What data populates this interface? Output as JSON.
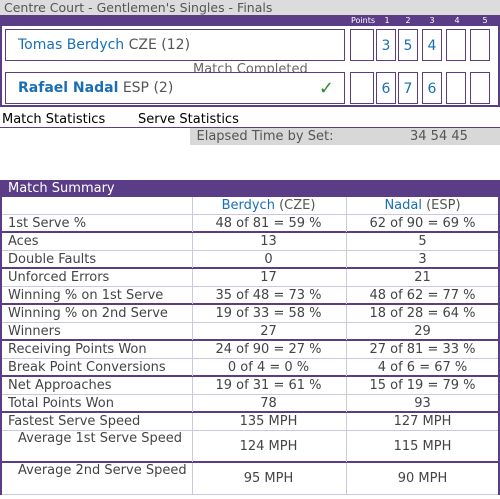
{
  "title": "Centre Court - Gentlemen's Singles - Finals",
  "header": {
    "points": "Points",
    "sets": [
      "1",
      "2",
      "3",
      "4",
      "5"
    ]
  },
  "players": [
    {
      "name": "Tomas Berdych",
      "extra": "CZE (12)",
      "bold": false,
      "winner": false,
      "sets": [
        "3",
        "5",
        "4",
        "",
        ""
      ]
    },
    {
      "name": "Rafael Nadal",
      "extra": "ESP (2)",
      "bold": true,
      "winner": true,
      "sets": [
        "6",
        "7",
        "6",
        "",
        ""
      ]
    }
  ],
  "status": "Match Completed",
  "links": {
    "match_stats": "Match Statistics",
    "serve_stats": "Serve Statistics"
  },
  "elapsed": {
    "label": "Elapsed Time by Set:",
    "value": "34 54 45"
  },
  "summary": {
    "title": "Match Summary",
    "col1": {
      "name": "Berdych",
      "country": "(CZE)"
    },
    "col2": {
      "name": "Nadal",
      "country": "(ESP)"
    },
    "rows": [
      {
        "label": "1st Serve %",
        "v1": "48 of 81 = 59 %",
        "v2": "62 of 90 = 69 %"
      },
      {
        "label": "Aces",
        "v1": "13",
        "v2": "5"
      },
      {
        "label": "Double Faults",
        "v1": "0",
        "v2": "3"
      },
      {
        "label": "Unforced Errors",
        "v1": "17",
        "v2": "21"
      },
      {
        "label": "Winning % on 1st Serve",
        "v1": "35 of 48 = 73 %",
        "v2": "48 of 62 = 77 %"
      },
      {
        "label": "Winning % on 2nd Serve",
        "v1": "19 of 33 = 58 %",
        "v2": "18 of 28 = 64 %"
      },
      {
        "label": "Winners",
        "v1": "27",
        "v2": "29"
      },
      {
        "label": "Receiving Points Won",
        "v1": "24 of 90 = 27 %",
        "v2": "27 of 81 = 33 %"
      },
      {
        "label": "Break Point Conversions",
        "v1": "0 of 4 = 0 %",
        "v2": "4 of 6 = 67 %"
      },
      {
        "label": "Net Approaches",
        "v1": "19 of 31 = 61 %",
        "v2": "15 of 19 = 79 %"
      },
      {
        "label": "Total Points Won",
        "v1": "78",
        "v2": "93"
      },
      {
        "label": "Fastest Serve Speed",
        "v1": "135 MPH",
        "v2": "127 MPH"
      },
      {
        "label": "Average 1st Serve Speed",
        "v1": "124 MPH",
        "v2": "115 MPH"
      },
      {
        "label": "Average 2nd Serve Speed",
        "v1": "95 MPH",
        "v2": "90 MPH"
      }
    ]
  },
  "colors": {
    "accent": "#5a3d86",
    "link": "#1a6fb4",
    "check": "#2f8a2f"
  }
}
